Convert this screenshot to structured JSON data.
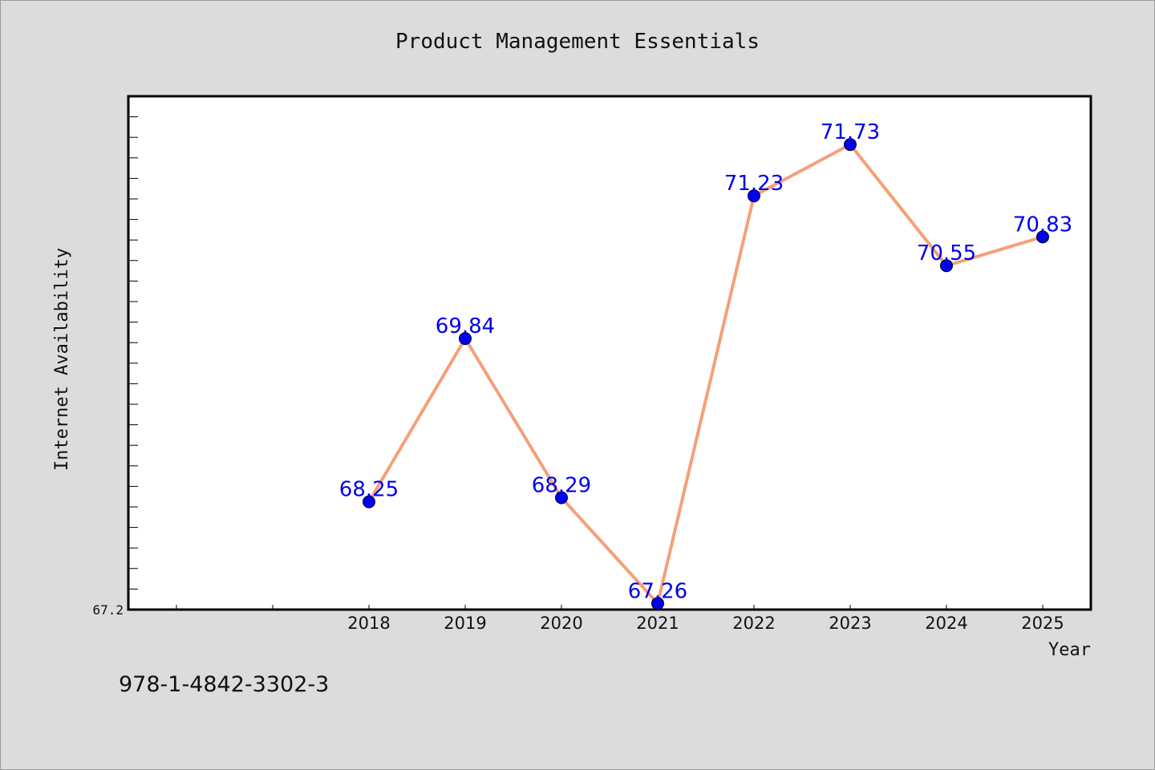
{
  "colors": {
    "background": "#dcdcdc",
    "plot_background": "#ffffff",
    "line": "#f4a07a",
    "marker": "#0000ee",
    "data_label": "#0000ee"
  },
  "footer": {
    "isbn": "978-1-4842-3302-3"
  },
  "chart_data": {
    "type": "line",
    "title": "Product Management Essentials",
    "xlabel": "Year",
    "ylabel": "Internet Availability",
    "categories": [
      "2018",
      "2019",
      "2020",
      "2021",
      "2022",
      "2023",
      "2024",
      "2025"
    ],
    "series": [
      {
        "values": [
          68.25,
          69.84,
          68.29,
          67.26,
          71.23,
          71.73,
          70.55,
          70.83
        ]
      }
    ],
    "data_labels": [
      "68.25",
      "69.84",
      "68.29",
      "67.26",
      "71.23",
      "71.73",
      "70.55",
      "70.83"
    ],
    "y_tick_labels": [
      "67.2"
    ],
    "ylim": [
      67.2,
      72.2
    ],
    "x_slots": 10,
    "first_category_slot": 2,
    "grid": false,
    "legend": "none"
  }
}
